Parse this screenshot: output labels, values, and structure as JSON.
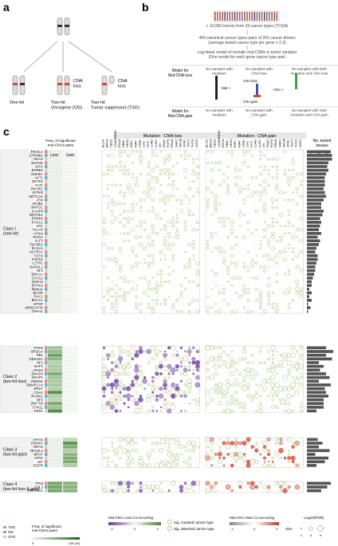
{
  "panels": {
    "a": "a",
    "b": "b",
    "c": "c"
  },
  "panel_a": {
    "cna_loss": "CNA\nloss",
    "labels": {
      "one_hit": "One-hit",
      "oncogene": "Two-hit\nOncogene (OG)",
      "tsg": "Two-hit\nTumor suppressor (TSG)"
    }
  },
  "panel_b": {
    "step1": "> 10,000 tumors from 33 cancer types (TCGA)",
    "step2": "454 canonical cancer types pairs of 201 cancer drivers\n(average tested cancer type per gene = 2.3)",
    "step3": "Log-linear model of somatic mut:CNAs in tumor samples\n(One model for each gene-cancer type pair)",
    "model_loss": "Model for\nMut:CNA loss",
    "model_gain": "Model for\nMut:CNA gain",
    "col1_loss": "No samples with\nmutation",
    "col2_loss": "No samples with\nCNA loss",
    "col3_loss": "No samples with both\nmutation and CNA loss",
    "col1_gain": "No samples with\nmutation",
    "col2_gain": "No samples with\nCNA gain",
    "col3_gain": "No samples with both\nmutation and CNA gain",
    "mut": "Mut +",
    "cna_loss": "CNA loss",
    "cna_gain": "CNA gain",
    "cna_plus": "CNA +"
  },
  "panel_c": {
    "header_loss": "Mutation : CNA loss",
    "header_gain": "Mutation : CNA gain",
    "freq_title": "Freq. of significant\nmut-CNAs pairs",
    "loss": "Loss",
    "gain": "Gain",
    "no_tested": "No. tested\ntissues",
    "axis_ticks": [
      "0",
      "10",
      "20"
    ],
    "cancer_types": [
      "BLCA",
      "BRCA",
      "CESC",
      "COADREAD",
      "ESCA",
      "GBM",
      "HNSC",
      "KIRC",
      "KIRP",
      "LAML",
      "LGG",
      "LIHC",
      "LUAD",
      "LUSC",
      "OV",
      "PAAD",
      "PCPG",
      "PRAD",
      "SARC",
      "SKCM",
      "STAD",
      "TGCT",
      "THCA",
      "UCEC"
    ],
    "classes": [
      {
        "label": "Class I\n(one-hit)",
        "genes": [
          "PIK3CA",
          "CTNNB1",
          "HRAS",
          "KMT2D",
          "IDH1",
          "ERBB2",
          "KDM6A",
          "AKT1",
          "SETD2",
          "FAT1",
          "PIK3R1",
          "EP300",
          "NOTCH1",
          "ATM",
          "SF3B1",
          "KMT2C",
          "CASP8",
          "MAP3K1",
          "ERBB3",
          "FOXA1",
          "APC",
          "HLA-B",
          "CHD4",
          "RHOA",
          "KLF5",
          "TGFBR2",
          "RASA1",
          "ACVR2A",
          "EZH2",
          "FGFR2",
          "LZTR1",
          "KANSL1",
          "NF1",
          "SMC1A",
          "STAG2",
          "RNF43",
          "EPHA2",
          "RBM10",
          "BCOR",
          "RAC1",
          "BRCA1",
          "SPOP",
          "ARHGAP35",
          "GNA11"
        ]
      },
      {
        "label": "Class 2\n(two-hit loss)",
        "genes": [
          "PTEN",
          "ARID1A",
          "RB1",
          "CDKN2A",
          "NF2",
          "BAP1",
          "ARID2",
          "SMAD4",
          "KEAP1",
          "PBRM1",
          "SMARCA4",
          "BRD7",
          "CDH1",
          "RUNX1",
          "NF2",
          "ZNF750",
          "STK11",
          "NSD1"
        ]
      },
      {
        "label": "Class 3\n(two-hit gain)",
        "genes": [
          "KRAS",
          "FBXW7",
          "NRAS",
          "NFE2L2",
          "BRAF",
          "ATRX",
          "KIT",
          "EGFR"
        ]
      },
      {
        "label": "Class 4\n(two-hit loss & gain)",
        "genes": [
          "TP53",
          "CUL3",
          "PPP2R1A"
        ]
      }
    ],
    "legend": {
      "tsg": "TSG",
      "og": "OG",
      "cfg": "CFG",
      "freq": "Freq. of significant\nmut-CNAs pairs",
      "freq_min": "0",
      "freq_max": "100 (%)",
      "loss_co": "Mut:CNV Loss Co-occurring",
      "gain_co": "Mut:CNV Gain Co-occurring",
      "coefficient": "Coefficient",
      "coef_ticks_loss": [
        "-2",
        "0",
        "2"
      ],
      "coef_ticks_gain": [
        "-2",
        "0",
        "2"
      ],
      "sig_mut": "Sig. mutated cancer type",
      "sig_det": "Sig. detected cancer type",
      "size": "Size",
      "fdr": "-Log10(FDR)",
      "size_ticks": [
        "1",
        "4",
        "9"
      ]
    },
    "colors": {
      "tsg": "#e8897e",
      "og": "#5db5c8",
      "cfg": "#cfcfcf",
      "loss": "#7b52a3",
      "gain": "#d7482e",
      "green": "#5a9a3c"
    }
  }
}
